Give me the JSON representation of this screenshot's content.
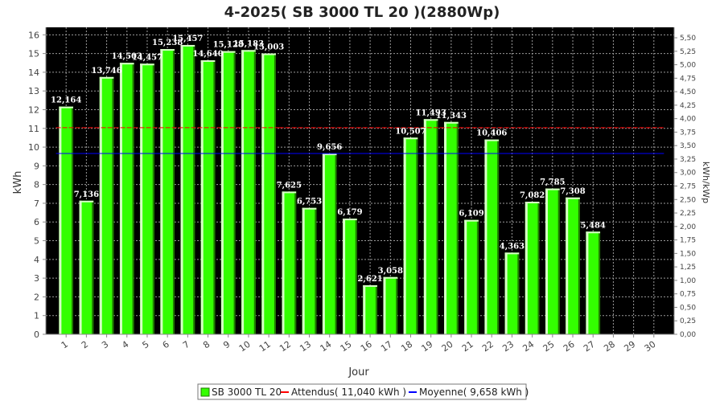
{
  "chart_data": {
    "type": "bar",
    "title": "4-2025( SB 3000 TL 20 )(2880Wp)",
    "xlabel": "Jour",
    "ylabel": "kWh",
    "ylabel_right": "kWh/kWp",
    "ylim": [
      0,
      16.4
    ],
    "ylim_right": [
      0,
      5.694
    ],
    "categories": [
      "1",
      "2",
      "3",
      "4",
      "5",
      "6",
      "7",
      "8",
      "9",
      "10",
      "11",
      "12",
      "13",
      "14",
      "15",
      "16",
      "17",
      "18",
      "19",
      "20",
      "21",
      "22",
      "23",
      "24",
      "25",
      "26",
      "27",
      "28",
      "29",
      "30"
    ],
    "series": [
      {
        "name": "SB 3000 TL 20",
        "values": [
          12.164,
          7.136,
          13.746,
          14.503,
          14.457,
          15.238,
          15.457,
          14.64,
          15.128,
          15.183,
          15.003,
          7.625,
          6.753,
          9.656,
          6.179,
          2.621,
          3.058,
          10.507,
          11.493,
          11.343,
          6.109,
          10.406,
          4.363,
          7.082,
          7.785,
          7.308,
          5.484,
          null,
          null,
          null
        ],
        "labels": [
          "12,164",
          "7,136",
          "13,746",
          "14,503",
          "14,457",
          "15,238",
          "15,457",
          "14,640",
          "15,128",
          "15,183",
          "15,003",
          "7,625",
          "6,753",
          "9,656",
          "6,179",
          "2,621",
          "3,058",
          "10,507",
          "11,493",
          "11,343",
          "6,109",
          "10,406",
          "4,363",
          "7,082",
          "7,785",
          "7,308",
          "5,484",
          "",
          "",
          ""
        ]
      }
    ],
    "reference_lines": [
      {
        "name": "Attendus( 11,040 kWh )",
        "value": 11.04,
        "color": "#ff0000",
        "style": "dashed",
        "segments": [
          [
            0,
            11
          ],
          [
            11,
            30
          ]
        ]
      },
      {
        "name": "Moyenne( 9,658 kWh )",
        "value": 9.658,
        "color": "#0000ff",
        "style": "solid",
        "segments": [
          [
            0,
            30
          ]
        ]
      }
    ],
    "yticks": [
      "0",
      "1",
      "2",
      "3",
      "4",
      "5",
      "6",
      "7",
      "8",
      "9",
      "10",
      "11",
      "12",
      "13",
      "14",
      "15",
      "16"
    ],
    "yticks_right": [
      "0,00",
      "0,25",
      "0,50",
      "0,75",
      "1,00",
      "1,25",
      "1,50",
      "1,75",
      "2,00",
      "2,25",
      "2,50",
      "2,75",
      "3,00",
      "3,25",
      "3,50",
      "3,75",
      "4,00",
      "4,25",
      "4,50",
      "4,75",
      "5,00",
      "5,25",
      "5,50"
    ],
    "grid": true,
    "legend_position": "bottom-center",
    "colors": {
      "bar_fill": "#33ff00",
      "bar_edge_light": "#d8ffc8",
      "bar_edge_dark": "#1f7a00",
      "plot_background": "#000000",
      "grid": "#9a9a9a",
      "data_label": "#ffffff"
    }
  }
}
